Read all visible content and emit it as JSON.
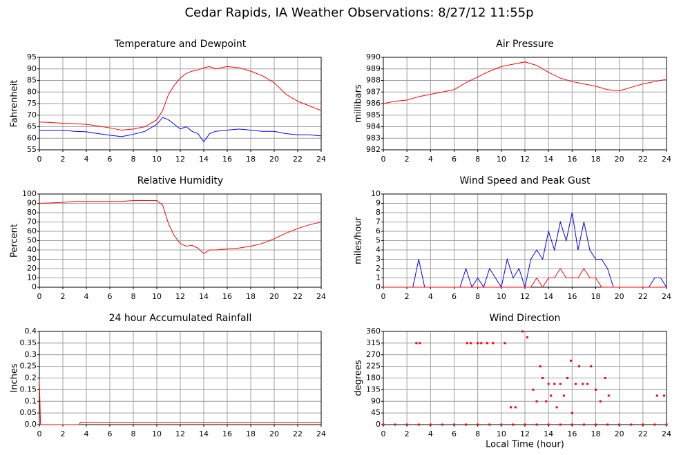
{
  "title": "Cedar Rapids, IA Weather Observations: 8/27/12 11:55p",
  "chart_data": [
    {
      "type": "line",
      "title": "Temperature and Dewpoint",
      "ylabel": "Fahrenheit",
      "grid": true,
      "x": [
        0,
        1,
        2,
        3,
        4,
        5,
        6,
        7,
        8,
        9,
        10,
        10.5,
        11,
        11.5,
        12,
        12.5,
        13,
        13.5,
        14,
        14.5,
        15,
        16,
        17,
        18,
        19,
        20,
        21,
        22,
        23,
        24
      ],
      "series": [
        {
          "color": "#ff0000",
          "values": [
            67,
            66.8,
            66.5,
            66.3,
            66,
            65.3,
            64.5,
            63.5,
            64,
            65,
            68,
            72,
            79,
            83,
            86,
            88,
            89,
            89.5,
            90.5,
            91,
            90,
            91,
            90.5,
            89,
            87,
            84,
            79,
            76,
            74,
            72
          ]
        },
        {
          "color": "#0000ff",
          "values": [
            63.5,
            63.5,
            63.5,
            63,
            62.8,
            62,
            61.3,
            60.7,
            61.7,
            63,
            66,
            69,
            68,
            66,
            64,
            65,
            63,
            62,
            58.5,
            62,
            63,
            63.5,
            64,
            63.5,
            63,
            63,
            62,
            61.5,
            61.5,
            61
          ]
        }
      ],
      "xlim": [
        0,
        24
      ],
      "xticks": [
        0,
        2,
        4,
        6,
        8,
        10,
        12,
        14,
        16,
        18,
        20,
        22,
        24
      ],
      "ylim": [
        55,
        95
      ],
      "yticks": [
        55,
        60,
        65,
        70,
        75,
        80,
        85,
        90,
        95
      ]
    },
    {
      "type": "line",
      "title": "Air Pressure",
      "ylabel": "millibars",
      "grid": true,
      "x": [
        0,
        1,
        2,
        3,
        4,
        5,
        6,
        7,
        8,
        9,
        10,
        11,
        12,
        13,
        14,
        15,
        16,
        17,
        18,
        19,
        20,
        21,
        22,
        23,
        24
      ],
      "series": [
        {
          "color": "#ff0000",
          "values": [
            986,
            986.2,
            986.3,
            986.6,
            986.8,
            987,
            987.2,
            987.8,
            988.3,
            988.8,
            989.2,
            989.4,
            989.6,
            989.3,
            988.7,
            988.2,
            987.9,
            987.7,
            987.5,
            987.2,
            987.1,
            987.4,
            987.7,
            987.9,
            988.1
          ]
        }
      ],
      "xlim": [
        0,
        24
      ],
      "xticks": [
        0,
        2,
        4,
        6,
        8,
        10,
        12,
        14,
        16,
        18,
        20,
        22,
        24
      ],
      "ylim": [
        982,
        990
      ],
      "yticks": [
        982,
        983,
        984,
        985,
        986,
        987,
        988,
        989,
        990
      ]
    },
    {
      "type": "line",
      "title": "Relative Humidity",
      "ylabel": "Percent",
      "grid": true,
      "x": [
        0,
        1,
        2,
        3,
        4,
        5,
        6,
        7,
        8,
        9,
        10,
        10.5,
        11,
        11.5,
        12,
        12.5,
        13,
        13.5,
        14,
        14.5,
        15,
        16,
        17,
        18,
        19,
        20,
        21,
        22,
        23,
        24
      ],
      "series": [
        {
          "color": "#ff0000",
          "values": [
            90,
            90.5,
            91,
            92,
            92,
            92,
            92,
            92,
            93,
            93,
            93,
            88,
            68,
            55,
            47,
            44,
            45,
            42,
            36,
            40,
            40,
            41,
            42,
            44,
            47,
            52,
            58,
            63,
            67,
            70
          ]
        }
      ],
      "xlim": [
        0,
        24
      ],
      "xticks": [
        0,
        2,
        4,
        6,
        8,
        10,
        12,
        14,
        16,
        18,
        20,
        22,
        24
      ],
      "ylim": [
        0,
        100
      ],
      "yticks": [
        0,
        10,
        20,
        30,
        40,
        50,
        60,
        70,
        80,
        90,
        100
      ]
    },
    {
      "type": "line",
      "title": "Wind Speed and Peak Gust",
      "ylabel": "miles/hour",
      "grid": true,
      "x": [
        0,
        0.5,
        1,
        1.5,
        2,
        2.5,
        3,
        3.5,
        4,
        4.5,
        5,
        5.5,
        6,
        6.5,
        7,
        7.5,
        8,
        8.5,
        9,
        9.5,
        10,
        10.5,
        11,
        11.5,
        12,
        12.5,
        13,
        13.5,
        14,
        14.5,
        15,
        15.5,
        16,
        16.5,
        17,
        17.5,
        18,
        18.5,
        19,
        19.5,
        20,
        20.5,
        21,
        21.5,
        22,
        22.5,
        23,
        23.5,
        24
      ],
      "series": [
        {
          "color": "#0000ff",
          "values": [
            0,
            0,
            0,
            0,
            0,
            0,
            3,
            0,
            0,
            0,
            0,
            0,
            0,
            0,
            2,
            0,
            1,
            0,
            2,
            1,
            0,
            3,
            1,
            2,
            0,
            3,
            4,
            3,
            6,
            4,
            7,
            5,
            8,
            4,
            7,
            4,
            3,
            3,
            2,
            0,
            0,
            0,
            0,
            0,
            0,
            0,
            1,
            1,
            0
          ]
        },
        {
          "color": "#ff0000",
          "values": [
            0,
            0,
            0,
            0,
            0,
            0,
            0,
            0,
            0,
            0,
            0,
            0,
            0,
            0,
            0,
            0,
            0,
            0,
            0,
            0,
            0,
            0,
            0,
            0,
            0,
            0,
            1,
            0,
            1,
            1,
            2,
            1,
            1,
            1,
            2,
            1,
            1,
            0,
            0,
            0,
            0,
            0,
            0,
            0,
            0,
            0,
            0,
            0,
            0
          ]
        }
      ],
      "xlim": [
        0,
        24
      ],
      "xticks": [
        0,
        2,
        4,
        6,
        8,
        10,
        12,
        14,
        16,
        18,
        20,
        22,
        24
      ],
      "ylim": [
        0,
        10
      ],
      "yticks": [
        0,
        1,
        2,
        3,
        4,
        5,
        6,
        7,
        8,
        9,
        10
      ]
    },
    {
      "type": "line",
      "title": "24 hour Accumulated Rainfall",
      "ylabel": "Inches",
      "grid": true,
      "x": [
        0,
        0.1,
        3.4,
        3.5,
        24
      ],
      "series": [
        {
          "color": "#ff0000",
          "values": [
            0.19,
            0,
            0,
            0.01,
            0.01
          ]
        }
      ],
      "xlim": [
        0,
        24
      ],
      "xticks": [
        0,
        2,
        4,
        6,
        8,
        10,
        12,
        14,
        16,
        18,
        20,
        22,
        24
      ],
      "ylim": [
        0,
        0.4
      ],
      "yticks": [
        {
          "value": 0,
          "label": "0.0"
        },
        0.05,
        0.1,
        0.15,
        0.2,
        0.25,
        0.3,
        0.35,
        0.4
      ]
    },
    {
      "type": "scatter",
      "title": "Wind Direction",
      "ylabel": "degrees",
      "xlabel": "Local Time (hour)",
      "grid": true,
      "x": [
        0,
        1,
        2,
        3,
        4,
        5,
        6,
        7,
        8,
        9,
        10,
        11,
        12,
        13,
        14,
        15,
        16,
        17,
        18,
        19,
        20,
        21,
        22,
        23,
        24,
        2.8,
        3.1,
        7.1,
        7.4,
        8,
        8.3,
        8.8,
        9.3,
        10.3,
        10.8,
        11.2,
        11.8,
        12.2,
        12.7,
        13,
        13.3,
        13.5,
        13.8,
        14,
        14.2,
        14.5,
        14.7,
        15,
        15.3,
        15.6,
        15.9,
        16,
        16.3,
        16.6,
        16.9,
        17.3,
        17.6,
        18,
        18.4,
        18.8,
        19.1,
        23.2,
        23.8
      ],
      "series": [
        {
          "color": "#ff0000",
          "values": [
            0,
            0,
            0,
            0,
            0,
            0,
            0,
            0,
            0,
            0,
            0,
            0,
            0,
            0,
            0,
            0,
            0,
            0,
            0,
            0,
            0,
            0,
            0,
            0,
            0,
            315,
            315,
            315,
            315,
            315,
            315,
            315,
            315,
            315,
            67,
            67,
            360,
            337,
            135,
            90,
            225,
            180,
            90,
            157,
            112,
            157,
            67,
            157,
            112,
            180,
            247,
            45,
            157,
            225,
            157,
            157,
            225,
            135,
            90,
            180,
            112,
            112,
            112
          ]
        }
      ],
      "xlim": [
        0,
        24
      ],
      "xticks": [
        0,
        2,
        4,
        6,
        8,
        10,
        12,
        14,
        16,
        18,
        20,
        22,
        24
      ],
      "ylim": [
        0,
        360
      ],
      "yticks": [
        0,
        45,
        90,
        135,
        180,
        225,
        270,
        315,
        360
      ]
    }
  ]
}
